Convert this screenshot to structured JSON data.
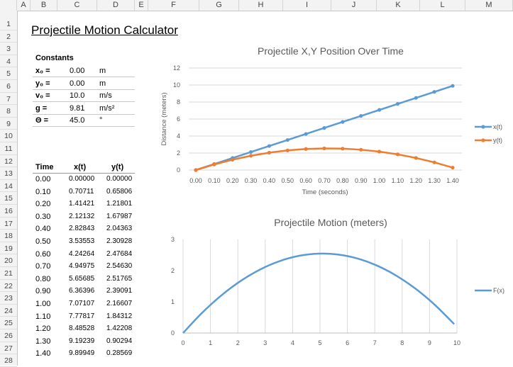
{
  "sheet": {
    "columns": [
      "A",
      "B",
      "C",
      "D",
      "E",
      "F",
      "G",
      "H",
      "I",
      "J",
      "K",
      "L",
      "M"
    ],
    "rows": [
      "1",
      "2",
      "3",
      "4",
      "5",
      "6",
      "7",
      "8",
      "9",
      "10",
      "11",
      "12",
      "13",
      "14",
      "15",
      "16",
      "17",
      "18",
      "19",
      "20",
      "21",
      "22",
      "23",
      "24",
      "25",
      "26",
      "27",
      "28"
    ]
  },
  "title": "Projectile Motion Calculator",
  "constants": {
    "heading": "Constants",
    "items": [
      {
        "label": "x₀ =",
        "value": "0.00",
        "unit": "m"
      },
      {
        "label": "y₀ =",
        "value": "0.00",
        "unit": "m"
      },
      {
        "label": "v₀ =",
        "value": "10.0",
        "unit": "m/s"
      },
      {
        "label": "g =",
        "value": "9.81",
        "unit": "m/s²"
      },
      {
        "label": "Θ =",
        "value": "45.0",
        "unit": "°"
      }
    ]
  },
  "table": {
    "headers": [
      "Time",
      "x(t)",
      "y(t)"
    ],
    "rows": [
      [
        "0.00",
        "0.00000",
        "0.00000"
      ],
      [
        "0.10",
        "0.70711",
        "0.65806"
      ],
      [
        "0.20",
        "1.41421",
        "1.21801"
      ],
      [
        "0.30",
        "2.12132",
        "1.67987"
      ],
      [
        "0.40",
        "2.82843",
        "2.04363"
      ],
      [
        "0.50",
        "3.53553",
        "2.30928"
      ],
      [
        "0.60",
        "4.24264",
        "2.47684"
      ],
      [
        "0.70",
        "4.94975",
        "2.54630"
      ],
      [
        "0.80",
        "5.65685",
        "2.51765"
      ],
      [
        "0.90",
        "6.36396",
        "2.39091"
      ],
      [
        "1.00",
        "7.07107",
        "2.16607"
      ],
      [
        "1.10",
        "7.77817",
        "1.84312"
      ],
      [
        "1.20",
        "8.48528",
        "1.42208"
      ],
      [
        "1.30",
        "9.19239",
        "0.90294"
      ],
      [
        "1.40",
        "9.89949",
        "0.28569"
      ]
    ]
  },
  "chart_data": [
    {
      "type": "line",
      "title": "Projectile X,Y Position Over Time",
      "xlabel": "Time (seconds)",
      "ylabel": "Distance (meters)",
      "categories": [
        "0.00",
        "0.10",
        "0.20",
        "0.30",
        "0.40",
        "0.50",
        "0.60",
        "0.70",
        "0.80",
        "0.90",
        "1.00",
        "1.10",
        "1.20",
        "1.30",
        "1.40"
      ],
      "ylim": [
        0,
        12
      ],
      "yticks": [
        "0",
        "2",
        "4",
        "6",
        "8",
        "10",
        "12"
      ],
      "grid": true,
      "legend": "right",
      "series": [
        {
          "name": "x(t)",
          "color": "#5b9bd5",
          "values": [
            0,
            0.70711,
            1.41421,
            2.12132,
            2.82843,
            3.53553,
            4.24264,
            4.94975,
            5.65685,
            6.36396,
            7.07107,
            7.77817,
            8.48528,
            9.19239,
            9.89949
          ]
        },
        {
          "name": "y(t)",
          "color": "#ed7d31",
          "values": [
            0,
            0.65806,
            1.21801,
            1.67987,
            2.04363,
            2.30928,
            2.47684,
            2.5463,
            2.51765,
            2.39091,
            2.16607,
            1.84312,
            1.42208,
            0.90294,
            0.28569
          ]
        }
      ]
    },
    {
      "type": "scatter",
      "title": "Projectile Motion (meters)",
      "xlabel": "",
      "ylabel": "",
      "xlim": [
        0,
        10
      ],
      "ylim": [
        0,
        3
      ],
      "xticks": [
        "0",
        "1",
        "2",
        "3",
        "4",
        "5",
        "6",
        "7",
        "8",
        "9",
        "10"
      ],
      "yticks": [
        "0",
        "1",
        "2",
        "3"
      ],
      "grid": true,
      "legend": "right",
      "series": [
        {
          "name": "F(x)",
          "color": "#5b9bd5",
          "x": [
            0,
            0.70711,
            1.41421,
            2.12132,
            2.82843,
            3.53553,
            4.24264,
            4.94975,
            5.65685,
            6.36396,
            7.07107,
            7.77817,
            8.48528,
            9.19239,
            9.89949
          ],
          "y": [
            0,
            0.65806,
            1.21801,
            1.67987,
            2.04363,
            2.30928,
            2.47684,
            2.5463,
            2.51765,
            2.39091,
            2.16607,
            1.84312,
            1.42208,
            0.90294,
            0.28569
          ]
        }
      ]
    }
  ]
}
